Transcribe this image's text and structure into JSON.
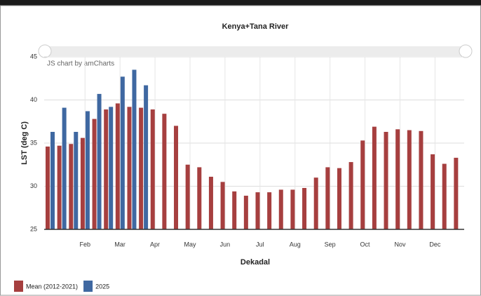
{
  "chart_data": {
    "type": "bar",
    "title": "Kenya+Tana River",
    "credit": "JS chart by amCharts",
    "y_label": "LST (deg C)",
    "x_label": "Dekadal",
    "categories": [
      null,
      null,
      null,
      "Feb",
      null,
      null,
      "Mar",
      null,
      null,
      "Apr",
      null,
      null,
      "May",
      null,
      null,
      "Jun",
      null,
      null,
      "Jul",
      null,
      null,
      "Aug",
      null,
      null,
      "Sep",
      null,
      null,
      "Oct",
      null,
      null,
      "Nov",
      null,
      null,
      "Dec",
      null,
      null
    ],
    "series": [
      {
        "name": "Mean (2012-2021)",
        "color": "#a63f3f",
        "values": [
          34.6,
          34.7,
          34.9,
          35.6,
          37.8,
          38.9,
          39.6,
          39.2,
          39.1,
          38.9,
          38.4,
          37.0,
          32.5,
          32.2,
          31.1,
          30.5,
          29.4,
          28.9,
          29.3,
          29.3,
          29.6,
          29.6,
          29.8,
          31.0,
          32.2,
          32.1,
          32.8,
          35.3,
          36.9,
          36.3,
          36.6,
          36.5,
          36.4,
          33.7,
          32.6,
          33.3
        ]
      },
      {
        "name": "2025",
        "color": "#3f68a1",
        "values": [
          36.3,
          39.1,
          36.3,
          38.7,
          40.7,
          39.2,
          42.7,
          43.5,
          41.7,
          null,
          null,
          null,
          null,
          null,
          null,
          null,
          null,
          null,
          null,
          null,
          null,
          null,
          null,
          null,
          null,
          null,
          null,
          null,
          null,
          null,
          null,
          null,
          null,
          null,
          null,
          null
        ]
      }
    ],
    "ylim": [
      25,
      45
    ],
    "yticks": [
      25,
      30,
      35,
      40,
      45
    ],
    "grid": true,
    "legend": "bottom-left"
  }
}
